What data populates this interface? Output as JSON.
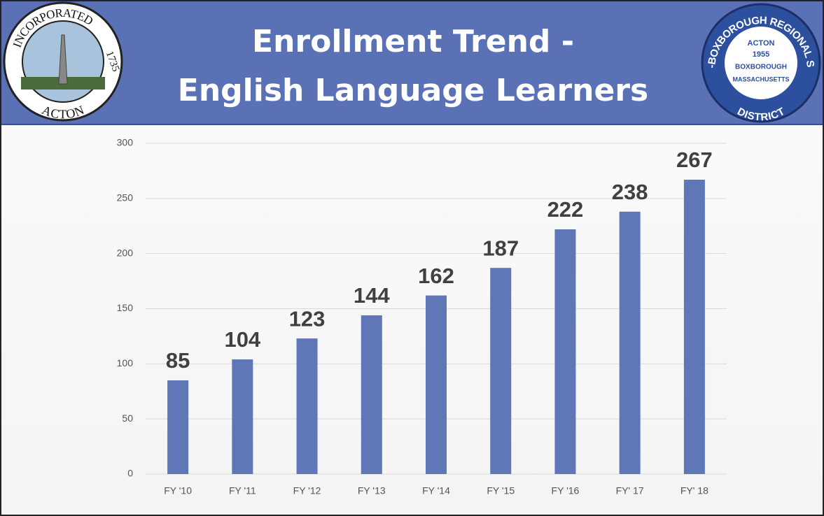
{
  "chart_data": {
    "type": "bar",
    "title": [
      "Enrollment Trend -",
      "English Language Learners"
    ],
    "categories": [
      "FY '10",
      "FY '11",
      "FY '12",
      "FY '13",
      "FY '14",
      "FY '15",
      "FY '16",
      "FY' 17",
      "FY' 18"
    ],
    "values": [
      85,
      104,
      123,
      144,
      162,
      187,
      222,
      238,
      267
    ],
    "color": "#5f76b7",
    "ylim": [
      0,
      300
    ],
    "yticks": [
      0,
      50,
      100,
      150,
      200,
      250,
      300
    ],
    "grid": true
  },
  "logos": {
    "left": {
      "top": "INCORPORATED",
      "year": "1735",
      "bottom": "ACTON"
    },
    "right": {
      "ring_top": "ACTON-BOXBOROUGH REGIONAL SCHOOL",
      "ring_bottom": "DISTRICT",
      "line1": "ACTON",
      "line2": "1955",
      "line3": "BOXBOROUGH",
      "line4": "MASSACHUSETTS"
    }
  }
}
